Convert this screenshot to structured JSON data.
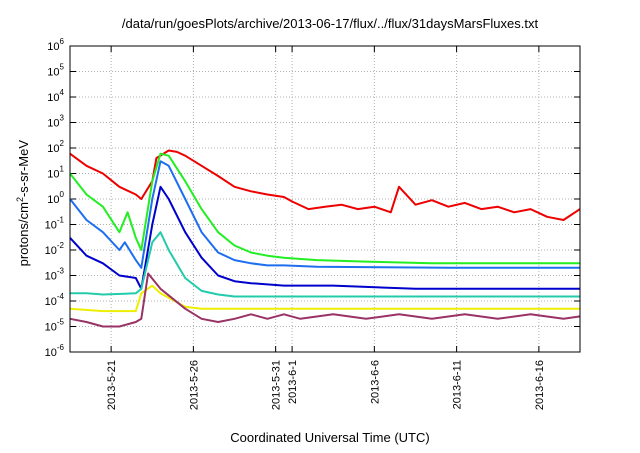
{
  "chart_data": {
    "type": "line",
    "title": "/data/run/goesPlots/archive/2013-06-17/flux/../flux/31daysMarsFluxes.txt",
    "xlabel": "Coordinated Universal Time (UTC)",
    "ylabel_prefix": "protons/cm",
    "ylabel_sup": "2",
    "ylabel_suffix": "-s-sr-MeV",
    "y_scale": "log",
    "ylim_exp": [
      -6,
      6
    ],
    "y_tick_base": "10",
    "y_tick_exponents": [
      "-6",
      "-5",
      "-4",
      "-3",
      "-2",
      "-1",
      "0",
      "1",
      "2",
      "3",
      "4",
      "5",
      "6"
    ],
    "xlim": [
      "2013-05-18T12:00",
      "2013-06-18T12:00"
    ],
    "x_ticks": [
      {
        "date": "2013-05-21",
        "label": "2013-5-21"
      },
      {
        "date": "2013-05-26",
        "label": "2013-5-26"
      },
      {
        "date": "2013-05-31",
        "label": "2013-5-31"
      },
      {
        "date": "2013-06-01",
        "label": "2013-6-1"
      },
      {
        "date": "2013-06-06",
        "label": "2013-6-6"
      },
      {
        "date": "2013-06-11",
        "label": "2013-6-11"
      },
      {
        "date": "2013-06-16",
        "label": "2013-6-16"
      }
    ],
    "grid": true,
    "legend": "none",
    "series": [
      {
        "color": "#ee0000",
        "x": [
          "2013-05-18T12:00",
          "2013-05-19T12:00",
          "2013-05-20T12:00",
          "2013-05-21T12:00",
          "2013-05-22T12:00",
          "2013-05-22T20:00",
          "2013-05-23T12:00",
          "2013-05-23T18:00",
          "2013-05-24T12:00",
          "2013-05-25T00:00",
          "2013-05-25T12:00",
          "2013-05-26T12:00",
          "2013-05-27T12:00",
          "2013-05-28T12:00",
          "2013-05-29T12:00",
          "2013-05-30T12:00",
          "2013-05-31T12:00",
          "2013-06-01T00:00",
          "2013-06-02T00:00",
          "2013-06-03T00:00",
          "2013-06-04T00:00",
          "2013-06-05T00:00",
          "2013-06-06T00:00",
          "2013-06-07T00:00",
          "2013-06-07T12:00",
          "2013-06-08T12:00",
          "2013-06-09T12:00",
          "2013-06-10T12:00",
          "2013-06-11T12:00",
          "2013-06-12T12:00",
          "2013-06-13T12:00",
          "2013-06-14T12:00",
          "2013-06-15T12:00",
          "2013-06-16T12:00",
          "2013-06-17T12:00",
          "2013-06-18T12:00"
        ],
        "y": [
          60,
          20,
          10,
          3,
          1.5,
          1.0,
          5,
          40,
          80,
          70,
          50,
          20,
          8,
          3,
          2,
          1.5,
          1.2,
          0.8,
          0.4,
          0.5,
          0.6,
          0.4,
          0.5,
          0.3,
          3,
          0.6,
          0.9,
          0.5,
          0.7,
          0.4,
          0.5,
          0.3,
          0.4,
          0.2,
          0.15,
          0.4
        ]
      },
      {
        "color": "#22ee22",
        "x": [
          "2013-05-18T12:00",
          "2013-05-19T12:00",
          "2013-05-20T12:00",
          "2013-05-21T12:00",
          "2013-05-22T00:00",
          "2013-05-22T12:00",
          "2013-05-22T20:00",
          "2013-05-23T12:00",
          "2013-05-24T00:00",
          "2013-05-24T12:00",
          "2013-05-25T12:00",
          "2013-05-26T12:00",
          "2013-05-27T12:00",
          "2013-05-28T12:00",
          "2013-05-29T12:00",
          "2013-05-30T12:00",
          "2013-05-31T12:00",
          "2013-06-02T12:00",
          "2013-06-05T12:00",
          "2013-06-09T12:00",
          "2013-06-13T12:00",
          "2013-06-18T12:00"
        ],
        "y": [
          10,
          1.5,
          0.5,
          0.05,
          0.3,
          0.03,
          0.01,
          5,
          60,
          50,
          5,
          0.4,
          0.05,
          0.015,
          0.008,
          0.006,
          0.005,
          0.004,
          0.0035,
          0.003,
          0.003,
          0.003
        ]
      },
      {
        "color": "#1e6ef0",
        "x": [
          "2013-05-18T12:00",
          "2013-05-19T12:00",
          "2013-05-20T12:00",
          "2013-05-21T12:00",
          "2013-05-21T20:00",
          "2013-05-22T12:00",
          "2013-05-22T20:00",
          "2013-05-23T12:00",
          "2013-05-24T00:00",
          "2013-05-24T12:00",
          "2013-05-25T12:00",
          "2013-05-26T12:00",
          "2013-05-27T12:00",
          "2013-05-28T12:00",
          "2013-05-29T12:00",
          "2013-05-30T12:00",
          "2013-05-31T12:00",
          "2013-06-02T12:00",
          "2013-06-06T12:00",
          "2013-06-10T12:00",
          "2013-06-14T12:00",
          "2013-06-18T12:00"
        ],
        "y": [
          1,
          0.15,
          0.05,
          0.01,
          0.02,
          0.004,
          0.002,
          1,
          30,
          20,
          1,
          0.05,
          0.008,
          0.004,
          0.003,
          0.0025,
          0.0025,
          0.0022,
          0.0021,
          0.002,
          0.002,
          0.002
        ]
      },
      {
        "color": "#0000cc",
        "x": [
          "2013-05-18T12:00",
          "2013-05-19T12:00",
          "2013-05-20T12:00",
          "2013-05-21T12:00",
          "2013-05-22T12:00",
          "2013-05-22T20:00",
          "2013-05-23T12:00",
          "2013-05-24T00:00",
          "2013-05-24T12:00",
          "2013-05-25T12:00",
          "2013-05-26T12:00",
          "2013-05-27T12:00",
          "2013-05-28T12:00",
          "2013-05-29T12:00",
          "2013-05-31T12:00",
          "2013-06-03T12:00",
          "2013-06-08T12:00",
          "2013-06-13T12:00",
          "2013-06-18T12:00"
        ],
        "y": [
          0.03,
          0.006,
          0.003,
          0.001,
          0.0008,
          0.0003,
          0.1,
          3,
          1,
          0.05,
          0.005,
          0.001,
          0.0006,
          0.0005,
          0.0004,
          0.0004,
          0.0003,
          0.0003,
          0.0003
        ]
      },
      {
        "color": "#22ccaa",
        "x": [
          "2013-05-18T12:00",
          "2013-05-19T12:00",
          "2013-05-20T12:00",
          "2013-05-22T12:00",
          "2013-05-22T20:00",
          "2013-05-23T12:00",
          "2013-05-24T00:00",
          "2013-05-24T12:00",
          "2013-05-25T12:00",
          "2013-05-26T12:00",
          "2013-05-27T12:00",
          "2013-05-28T12:00",
          "2013-05-31T12:00",
          "2013-06-05T12:00",
          "2013-06-10T12:00",
          "2013-06-14T12:00",
          "2013-06-18T12:00"
        ],
        "y": [
          0.0002,
          0.0002,
          0.00018,
          0.0002,
          0.0003,
          0.02,
          0.05,
          0.01,
          0.0008,
          0.00025,
          0.00018,
          0.00015,
          0.00015,
          0.00015,
          0.00015,
          0.00015,
          0.00015
        ]
      },
      {
        "color": "#eeee00",
        "x": [
          "2013-05-18T12:00",
          "2013-05-20T12:00",
          "2013-05-22T12:00",
          "2013-05-22T20:00",
          "2013-05-23T12:00",
          "2013-05-24T00:00",
          "2013-05-25T12:00",
          "2013-05-26T12:00",
          "2013-05-31T12:00",
          "2013-06-05T12:00",
          "2013-06-10T12:00",
          "2013-06-14T12:00",
          "2013-06-18T12:00"
        ],
        "y": [
          5e-05,
          4e-05,
          4e-05,
          0.0002,
          0.0004,
          0.0002,
          6e-05,
          5e-05,
          5e-05,
          5e-05,
          5e-05,
          5e-05,
          5e-05
        ]
      },
      {
        "color": "#993366",
        "x": [
          "2013-05-18T12:00",
          "2013-05-19T12:00",
          "2013-05-20T12:00",
          "2013-05-21T12:00",
          "2013-05-22T12:00",
          "2013-05-22T20:00",
          "2013-05-23T06:00",
          "2013-05-24T00:00",
          "2013-05-25T12:00",
          "2013-05-26T12:00",
          "2013-05-27T12:00",
          "2013-05-28T12:00",
          "2013-05-29T12:00",
          "2013-05-30T12:00",
          "2013-05-31T12:00",
          "2013-06-01T12:00",
          "2013-06-03T12:00",
          "2013-06-05T12:00",
          "2013-06-07T12:00",
          "2013-06-09T12:00",
          "2013-06-11T12:00",
          "2013-06-13T12:00",
          "2013-06-15T12:00",
          "2013-06-17T12:00",
          "2013-06-18T12:00"
        ],
        "y": [
          2e-05,
          1.5e-05,
          1e-05,
          1e-05,
          1.5e-05,
          2e-05,
          0.0012,
          0.0003,
          5e-05,
          2e-05,
          1.5e-05,
          2e-05,
          3e-05,
          2e-05,
          3e-05,
          2e-05,
          3e-05,
          2e-05,
          3e-05,
          2e-05,
          3e-05,
          2e-05,
          3e-05,
          2e-05,
          2.5e-05
        ]
      }
    ]
  }
}
